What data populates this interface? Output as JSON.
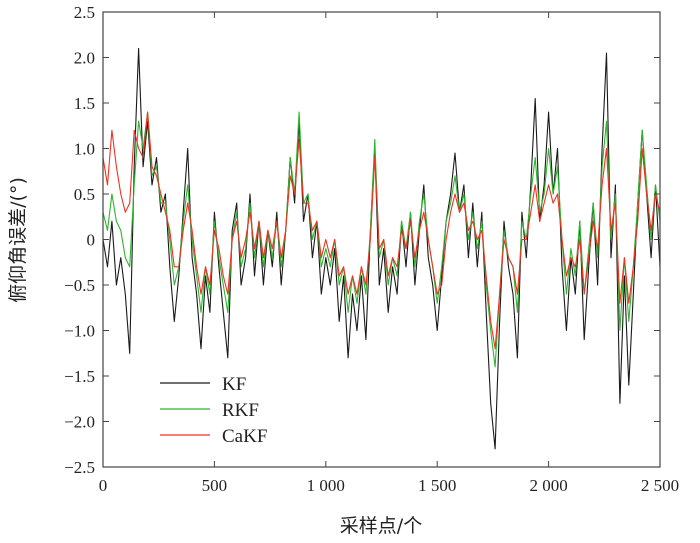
{
  "chart_data": {
    "type": "line",
    "title": "",
    "xlabel": "采样点/个",
    "ylabel": "俯仰角误差/(°)",
    "xlim": [
      0,
      2500
    ],
    "ylim": [
      -2.5,
      2.5
    ],
    "xticks": [
      0,
      500,
      1000,
      1500,
      2000,
      2500
    ],
    "xtick_labels": [
      "0",
      "500",
      "1 000",
      "1 500",
      "2 000",
      "2 500"
    ],
    "yticks": [
      2.5,
      2.0,
      1.5,
      1.0,
      0.5,
      0,
      -0.5,
      -1.0,
      -1.5,
      -2.0,
      -2.5
    ],
    "ytick_labels": [
      "2.5",
      "2.0",
      "1.5",
      "1.0",
      "0.5",
      "0",
      "−0.5",
      "−1.0",
      "−1.5",
      "−2.0",
      "−2.5"
    ],
    "grid": false,
    "legend_position": "bottom-left",
    "x_step": 20,
    "series": [
      {
        "name": "KF",
        "color": "#1a1a1a",
        "values": [
          0,
          -0.3,
          0.2,
          -0.5,
          -0.2,
          -0.6,
          -1.25,
          0.8,
          2.1,
          0.8,
          1.3,
          0.6,
          0.9,
          0.3,
          0.5,
          -0.3,
          -0.9,
          -0.4,
          0.3,
          1.0,
          -0.2,
          -0.6,
          -1.2,
          -0.4,
          -0.8,
          0.3,
          -0.3,
          -0.8,
          -1.3,
          0.1,
          0.4,
          -0.5,
          -0.2,
          0.5,
          -0.4,
          0.2,
          -0.5,
          0.1,
          -0.3,
          0.3,
          -0.5,
          0.1,
          0.9,
          0.4,
          1.3,
          0.2,
          0.5,
          -0.2,
          0.2,
          -0.6,
          -0.2,
          -0.5,
          -0.1,
          -0.9,
          -0.4,
          -1.3,
          -0.6,
          -1.0,
          -0.4,
          -1.1,
          0.1,
          1.0,
          -0.5,
          -0.1,
          -0.8,
          -0.3,
          -0.6,
          0.2,
          -0.3,
          0.3,
          -0.5,
          0.1,
          0.6,
          -0.2,
          -0.5,
          -1.0,
          -0.4,
          0.2,
          0.5,
          0.95,
          0.3,
          0.6,
          -0.2,
          0.4,
          -0.3,
          0.3,
          -0.8,
          -1.8,
          -2.3,
          -0.9,
          0.2,
          -0.3,
          -0.6,
          -1.3,
          0.3,
          -0.2,
          0.6,
          1.55,
          0.2,
          0.6,
          1.4,
          0.5,
          1.0,
          -0.3,
          -1.0,
          -0.2,
          -0.6,
          0.2,
          -1.1,
          -0.3,
          0.4,
          -0.5,
          1.0,
          2.05,
          -0.2,
          0.6,
          -1.8,
          -0.4,
          -1.6,
          -0.6,
          0.4,
          1.2,
          0.5,
          -0.2,
          0.6,
          -0.3
        ]
      },
      {
        "name": "RKF",
        "color": "#2db52d",
        "values": [
          0.3,
          0.1,
          0.5,
          0.2,
          0.1,
          -0.2,
          -0.3,
          0.6,
          1.3,
          1.0,
          1.4,
          0.7,
          0.8,
          0.4,
          0.4,
          0,
          -0.5,
          -0.3,
          0.2,
          0.6,
          0,
          -0.4,
          -0.8,
          -0.3,
          -0.6,
          0.2,
          -0.2,
          -0.5,
          -0.8,
          0,
          0.3,
          -0.3,
          -0.1,
          0.4,
          -0.2,
          0.2,
          -0.3,
          0.1,
          -0.2,
          0.2,
          -0.3,
          0.1,
          0.9,
          0.5,
          1.4,
          0.4,
          0.5,
          0,
          0.2,
          -0.3,
          -0.1,
          -0.3,
          0,
          -0.5,
          -0.3,
          -0.8,
          -0.4,
          -0.7,
          -0.3,
          -0.6,
          0.1,
          1.1,
          -0.2,
          0,
          -0.5,
          -0.2,
          -0.4,
          0.2,
          -0.1,
          0.3,
          -0.3,
          0.2,
          0.5,
          0,
          -0.3,
          -0.7,
          -0.3,
          0.2,
          0.4,
          0.7,
          0.3,
          0.5,
          0,
          0.3,
          -0.1,
          0.2,
          -0.5,
          -1.0,
          -1.4,
          -0.6,
          0.1,
          -0.2,
          -0.3,
          -0.8,
          0.2,
          0,
          0.5,
          0.9,
          0.3,
          0.5,
          1.0,
          0.5,
          0.8,
          0,
          -0.6,
          -0.1,
          -0.4,
          0.2,
          -0.6,
          -0.1,
          0.4,
          -0.2,
          0.8,
          1.3,
          0,
          0.5,
          -1.0,
          -0.2,
          -0.9,
          -0.3,
          0.4,
          1.2,
          0.6,
          0,
          0.6,
          0.2
        ]
      },
      {
        "name": "CaKF",
        "color": "#ee3322",
        "values": [
          0.9,
          0.6,
          1.2,
          0.8,
          0.5,
          0.3,
          0.4,
          1.2,
          1.0,
          0.9,
          1.4,
          0.8,
          0.7,
          0.5,
          0.3,
          0.1,
          -0.3,
          -0.3,
          0.1,
          0.4,
          0.1,
          -0.3,
          -0.6,
          -0.3,
          -0.5,
          0.1,
          -0.1,
          -0.4,
          -0.6,
          0,
          0.2,
          -0.2,
          0,
          0.3,
          -0.1,
          0.2,
          -0.2,
          0.1,
          -0.1,
          0.2,
          -0.2,
          0.1,
          0.7,
          0.5,
          1.1,
          0.4,
          0.4,
          0.1,
          0.2,
          -0.2,
          0,
          -0.2,
          0,
          -0.4,
          -0.3,
          -0.6,
          -0.4,
          -0.6,
          -0.3,
          -0.5,
          0,
          0.9,
          -0.1,
          0,
          -0.4,
          -0.2,
          -0.3,
          0.1,
          -0.1,
          0.2,
          -0.2,
          0.1,
          0.3,
          0,
          -0.3,
          -0.6,
          -0.5,
          0,
          0.3,
          0.5,
          0.3,
          0.4,
          0.1,
          0.2,
          0,
          0.1,
          -0.4,
          -0.9,
          -1.2,
          -0.6,
          0,
          -0.2,
          -0.3,
          -0.6,
          0,
          0,
          0.3,
          0.6,
          0.2,
          0.4,
          0.6,
          0.4,
          0.5,
          0,
          -0.4,
          -0.2,
          -0.3,
          0,
          -0.6,
          -0.2,
          0.2,
          -0.1,
          0.6,
          1.0,
          0.1,
          0.4,
          -0.7,
          -0.2,
          -0.7,
          -0.3,
          0.2,
          1.0,
          0.5,
          0.1,
          0.5,
          0.3
        ]
      }
    ]
  }
}
